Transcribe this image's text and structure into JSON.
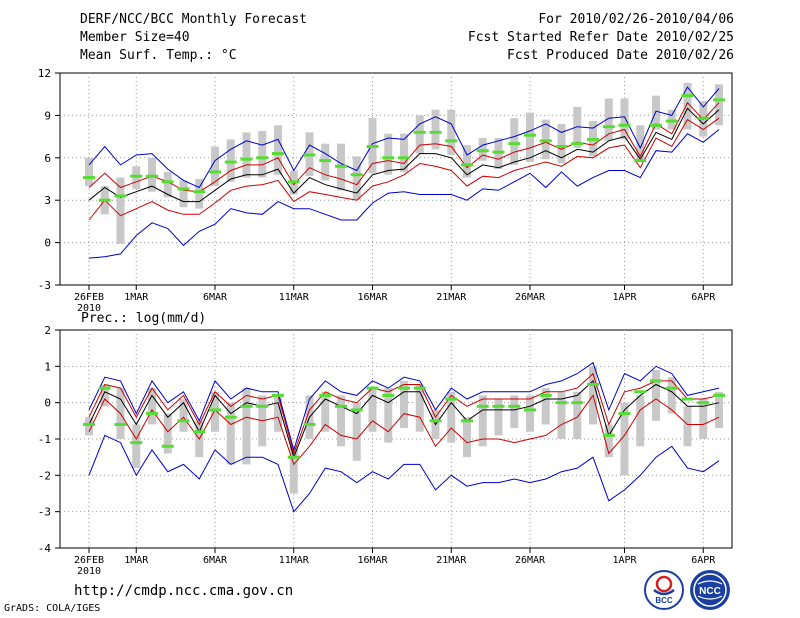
{
  "header": {
    "title": "DERF/NCC/BCC Monthly Forecast",
    "member_size": "Member Size=40",
    "variable": "Mean Surf. Temp.: °C",
    "period": "For 2010/02/26-2010/04/06",
    "started": "Fcst Started Refer Date 2010/02/25",
    "produced": "Fcst Produced Date 2010/02/26"
  },
  "footer": {
    "url": "http://cmdp.ncc.cma.gov.cn",
    "credit": "GrADS: COLA/IGES",
    "logo_bcc": "BCC",
    "logo_ncc": "NCC"
  },
  "colors": {
    "envelope": "#0000cc",
    "spread": "#cc0000",
    "mean": "#000000",
    "obs": "#55dd33",
    "box": "#c8c8c8",
    "grid": "#999999"
  },
  "chart_data": [
    {
      "type": "line",
      "title": "",
      "ylabel": "Mean Surf. Temp.: °C",
      "ylim": [
        -3,
        12
      ],
      "yticks": [
        "-3",
        "0",
        "3",
        "6",
        "9",
        "12"
      ],
      "xtick_labels": [
        {
          "day": 0,
          "label": "26FEB",
          "sub": "2010"
        },
        {
          "day": 3,
          "label": "1MAR"
        },
        {
          "day": 8,
          "label": "6MAR"
        },
        {
          "day": 13,
          "label": "11MAR"
        },
        {
          "day": 18,
          "label": "16MAR"
        },
        {
          "day": 23,
          "label": "21MAR"
        },
        {
          "day": 28,
          "label": "26MAR"
        },
        {
          "day": 34,
          "label": "1APR"
        },
        {
          "day": 39,
          "label": "6APR"
        }
      ],
      "series": [
        {
          "name": "max",
          "role": "envelope",
          "values": [
            5.5,
            6.8,
            5.5,
            6.2,
            6.3,
            5.2,
            4.4,
            3.9,
            5.8,
            6.6,
            7.2,
            6.9,
            7.3,
            5.1,
            6.9,
            6.3,
            5.6,
            5.1,
            7.0,
            7.4,
            7.3,
            8.4,
            8.9,
            8.4,
            6.2,
            6.9,
            7.2,
            7.5,
            7.9,
            8.4,
            7.8,
            8.2,
            8.1,
            8.8,
            8.9,
            6.7,
            9.3,
            9.0,
            11.0,
            9.6,
            10.9
          ]
        },
        {
          "name": "upper",
          "role": "spread",
          "values": [
            3.9,
            4.9,
            3.9,
            4.3,
            4.7,
            4.3,
            3.7,
            3.6,
            4.3,
            5.1,
            5.5,
            5.5,
            6.0,
            4.1,
            5.3,
            4.8,
            4.5,
            4.1,
            5.6,
            5.8,
            5.6,
            6.9,
            7.0,
            6.8,
            5.3,
            6.2,
            5.9,
            6.4,
            6.7,
            7.1,
            6.6,
            7.1,
            6.9,
            7.7,
            8.0,
            6.1,
            8.4,
            7.7,
            9.9,
            8.7,
            9.9
          ]
        },
        {
          "name": "mean",
          "role": "mean",
          "values": [
            3.0,
            3.9,
            3.2,
            3.6,
            4.0,
            3.4,
            2.9,
            2.9,
            3.7,
            4.5,
            4.8,
            4.8,
            5.2,
            3.5,
            4.6,
            4.1,
            3.8,
            3.5,
            4.8,
            5.1,
            5.2,
            6.3,
            6.3,
            6.0,
            4.8,
            5.5,
            5.3,
            5.7,
            6.0,
            6.5,
            6.0,
            6.6,
            6.4,
            7.2,
            7.5,
            5.9,
            7.8,
            7.3,
            9.5,
            8.4,
            9.4
          ]
        },
        {
          "name": "lower",
          "role": "spread",
          "values": [
            1.6,
            3.0,
            1.9,
            2.4,
            2.9,
            2.3,
            2.0,
            2.0,
            2.8,
            3.7,
            4.0,
            4.1,
            4.4,
            2.9,
            3.6,
            3.4,
            3.2,
            3.0,
            4.0,
            4.3,
            4.8,
            5.6,
            5.4,
            5.1,
            4.0,
            4.7,
            4.6,
            5.1,
            5.4,
            5.7,
            5.4,
            6.1,
            6.0,
            6.7,
            6.9,
            5.3,
            7.4,
            6.8,
            8.7,
            8.0,
            8.8
          ]
        },
        {
          "name": "min",
          "role": "envelope",
          "values": [
            -1.1,
            -1.0,
            -0.8,
            0.5,
            1.4,
            1.0,
            -0.2,
            0.8,
            1.3,
            2.4,
            2.1,
            2.0,
            2.9,
            2.4,
            2.4,
            2.0,
            1.6,
            1.6,
            2.8,
            3.5,
            3.6,
            3.4,
            3.4,
            3.4,
            3.0,
            3.8,
            3.7,
            4.3,
            4.9,
            3.9,
            5.0,
            4.0,
            4.6,
            5.1,
            5.1,
            4.6,
            6.5,
            6.4,
            7.7,
            7.1,
            8.0
          ]
        },
        {
          "name": "obs",
          "role": "obs",
          "values": [
            4.6,
            3.0,
            3.3,
            4.7,
            4.7,
            4.3,
            3.8,
            3.6,
            5.0,
            5.7,
            5.9,
            6.0,
            6.3,
            4.3,
            6.2,
            5.8,
            5.4,
            4.8,
            6.8,
            6.0,
            6.0,
            7.8,
            7.8,
            7.2,
            5.5,
            6.5,
            6.4,
            7.0,
            7.6,
            7.2,
            6.8,
            7.0,
            7.3,
            8.2,
            8.3,
            5.8,
            8.3,
            8.6,
            10.4,
            8.8,
            10.1
          ]
        }
      ],
      "boxes": [
        [
          4.0,
          6.0
        ],
        [
          2.0,
          4.0
        ],
        [
          -0.1,
          4.6
        ],
        [
          3.8,
          5.4
        ],
        [
          3.6,
          6.0
        ],
        [
          3.2,
          5.0
        ],
        [
          2.5,
          4.4
        ],
        [
          2.4,
          4.5
        ],
        [
          4.0,
          6.8
        ],
        [
          4.3,
          7.3
        ],
        [
          4.6,
          7.8
        ],
        [
          4.6,
          7.9
        ],
        [
          4.8,
          8.3
        ],
        [
          3.4,
          5.1
        ],
        [
          4.7,
          7.8
        ],
        [
          4.4,
          7.0
        ],
        [
          3.7,
          7.0
        ],
        [
          3.0,
          6.1
        ],
        [
          4.9,
          8.8
        ],
        [
          4.8,
          7.7
        ],
        [
          5.0,
          7.7
        ],
        [
          6.3,
          9.0
        ],
        [
          6.6,
          9.4
        ],
        [
          6.2,
          9.4
        ],
        [
          4.6,
          6.9
        ],
        [
          5.8,
          7.4
        ],
        [
          5.2,
          7.4
        ],
        [
          5.5,
          8.8
        ],
        [
          5.7,
          9.2
        ],
        [
          5.9,
          8.7
        ],
        [
          5.6,
          8.4
        ],
        [
          6.7,
          9.6
        ],
        [
          6.1,
          8.6
        ],
        [
          7.2,
          10.2
        ],
        [
          7.3,
          10.2
        ],
        [
          5.7,
          8.3
        ],
        [
          8.0,
          10.4
        ],
        [
          8.0,
          9.4
        ],
        [
          8.0,
          11.3
        ],
        [
          7.5,
          10.0
        ],
        [
          8.3,
          11.2
        ]
      ]
    },
    {
      "type": "line",
      "title": "",
      "ylabel": "Prec.: log(mm/d)",
      "ylim": [
        -4,
        2
      ],
      "yticks": [
        "-4",
        "-3",
        "-2",
        "-1",
        "0",
        "1",
        "2"
      ],
      "xtick_labels": [
        {
          "day": 0,
          "label": "26FEB",
          "sub": "2010"
        },
        {
          "day": 3,
          "label": "1MAR"
        },
        {
          "day": 8,
          "label": "6MAR"
        },
        {
          "day": 13,
          "label": "11MAR"
        },
        {
          "day": 18,
          "label": "16MAR"
        },
        {
          "day": 23,
          "label": "21MAR"
        },
        {
          "day": 28,
          "label": "26MAR"
        },
        {
          "day": 34,
          "label": "1APR"
        },
        {
          "day": 39,
          "label": "6APR"
        }
      ],
      "series": [
        {
          "name": "max",
          "role": "envelope",
          "values": [
            -0.2,
            0.7,
            0.6,
            -0.3,
            0.6,
            0.0,
            0.3,
            -0.5,
            0.6,
            0.1,
            0.4,
            0.3,
            0.3,
            -1.3,
            0.1,
            0.6,
            0.3,
            0.2,
            0.6,
            0.4,
            0.7,
            0.6,
            -0.2,
            0.4,
            0.1,
            0.3,
            0.3,
            0.3,
            0.3,
            0.5,
            0.6,
            0.8,
            1.1,
            -0.2,
            0.8,
            0.6,
            1.0,
            0.8,
            0.2,
            0.3,
            0.4
          ]
        },
        {
          "name": "upper",
          "role": "spread",
          "values": [
            -0.4,
            0.5,
            0.4,
            -0.4,
            0.4,
            -0.2,
            0.2,
            -0.6,
            0.3,
            -0.1,
            0.2,
            0.1,
            0.2,
            -1.4,
            -0.2,
            0.3,
            0.1,
            0.0,
            0.4,
            0.3,
            0.5,
            0.5,
            -0.4,
            0.2,
            -0.1,
            0.1,
            0.1,
            0.1,
            0.1,
            0.3,
            0.3,
            0.4,
            0.8,
            -0.6,
            0.3,
            0.4,
            0.6,
            0.6,
            0.1,
            0.1,
            0.2
          ]
        },
        {
          "name": "mean",
          "role": "mean",
          "values": [
            -0.6,
            0.3,
            0.1,
            -0.6,
            0.2,
            -0.4,
            0.0,
            -0.8,
            0.2,
            -0.3,
            0.0,
            -0.1,
            0.0,
            -1.5,
            -0.4,
            0.1,
            -0.1,
            -0.3,
            0.2,
            0.0,
            0.3,
            0.3,
            -0.6,
            0.0,
            -0.5,
            -0.2,
            -0.2,
            -0.2,
            -0.1,
            0.1,
            0.1,
            0.2,
            0.6,
            -0.9,
            -0.2,
            0.2,
            0.5,
            0.3,
            -0.1,
            -0.1,
            0.0
          ]
        },
        {
          "name": "lower",
          "role": "spread",
          "values": [
            -0.8,
            0.1,
            -0.3,
            -1.0,
            -0.2,
            -0.8,
            -0.4,
            -1.0,
            -0.2,
            -0.6,
            -0.4,
            -0.5,
            -0.4,
            -1.7,
            -1.2,
            -0.6,
            -0.9,
            -1.0,
            -0.5,
            -0.8,
            -0.3,
            -0.4,
            -1.2,
            -0.7,
            -1.1,
            -1.0,
            -1.0,
            -1.1,
            -1.0,
            -0.9,
            -0.6,
            -0.4,
            0.2,
            -1.4,
            -0.9,
            -0.2,
            0.1,
            -0.2,
            -0.6,
            -0.6,
            -0.4
          ]
        },
        {
          "name": "min",
          "role": "envelope",
          "values": [
            -2.0,
            -0.9,
            -1.1,
            -2.0,
            -1.3,
            -1.9,
            -1.7,
            -2.1,
            -1.3,
            -1.7,
            -1.5,
            -1.5,
            -1.7,
            -3.0,
            -2.5,
            -1.8,
            -1.9,
            -2.2,
            -1.9,
            -2.1,
            -1.7,
            -1.7,
            -2.4,
            -2.0,
            -2.3,
            -2.2,
            -2.2,
            -2.1,
            -2.2,
            -2.1,
            -1.9,
            -1.8,
            -1.5,
            -2.7,
            -2.4,
            -2.0,
            -1.5,
            -1.2,
            -1.8,
            -1.9,
            -1.6
          ]
        },
        {
          "name": "obs",
          "role": "obs",
          "values": [
            -0.6,
            0.4,
            -0.6,
            -1.1,
            -0.3,
            -1.2,
            -0.5,
            -0.8,
            -0.2,
            -0.4,
            -0.1,
            -0.1,
            0.2,
            -1.5,
            -0.6,
            0.2,
            -0.1,
            -0.2,
            0.4,
            0.2,
            0.4,
            0.4,
            -0.5,
            0.1,
            -0.5,
            -0.1,
            -0.1,
            -0.1,
            -0.2,
            0.2,
            0.0,
            0.0,
            0.5,
            -0.9,
            -0.3,
            0.3,
            0.6,
            0.4,
            0.1,
            0.0,
            0.2
          ]
        }
      ],
      "boxes": [
        [
          -0.9,
          -0.4
        ],
        [
          -0.1,
          0.5
        ],
        [
          -1.0,
          0.4
        ],
        [
          -1.8,
          -0.6
        ],
        [
          -0.6,
          0.4
        ],
        [
          -1.4,
          -0.3
        ],
        [
          -0.8,
          0.1
        ],
        [
          -1.5,
          -0.5
        ],
        [
          -0.8,
          0.3
        ],
        [
          -1.7,
          0.0
        ],
        [
          -1.7,
          0.4
        ],
        [
          -1.2,
          0.2
        ],
        [
          -0.8,
          0.2
        ],
        [
          -2.5,
          -1.2
        ],
        [
          -1.0,
          0.2
        ],
        [
          -0.8,
          0.3
        ],
        [
          -1.2,
          0.2
        ],
        [
          -1.6,
          0.0
        ],
        [
          -0.8,
          0.4
        ],
        [
          -1.1,
          0.4
        ],
        [
          -0.7,
          0.6
        ],
        [
          -0.8,
          0.5
        ],
        [
          -1.0,
          -0.2
        ],
        [
          -1.1,
          0.3
        ],
        [
          -1.5,
          -0.4
        ],
        [
          -1.2,
          0.2
        ],
        [
          -0.9,
          0.1
        ],
        [
          -0.7,
          0.2
        ],
        [
          -0.8,
          0.2
        ],
        [
          -0.6,
          0.4
        ],
        [
          -1.0,
          0.3
        ],
        [
          -1.0,
          0.3
        ],
        [
          -0.6,
          1.0
        ],
        [
          -1.5,
          -0.6
        ],
        [
          -2.0,
          0.0
        ],
        [
          -1.2,
          0.2
        ],
        [
          -0.5,
          0.9
        ],
        [
          -0.3,
          0.7
        ],
        [
          -1.2,
          -0.1
        ],
        [
          -1.0,
          0.1
        ],
        [
          -0.7,
          0.3
        ]
      ]
    }
  ]
}
